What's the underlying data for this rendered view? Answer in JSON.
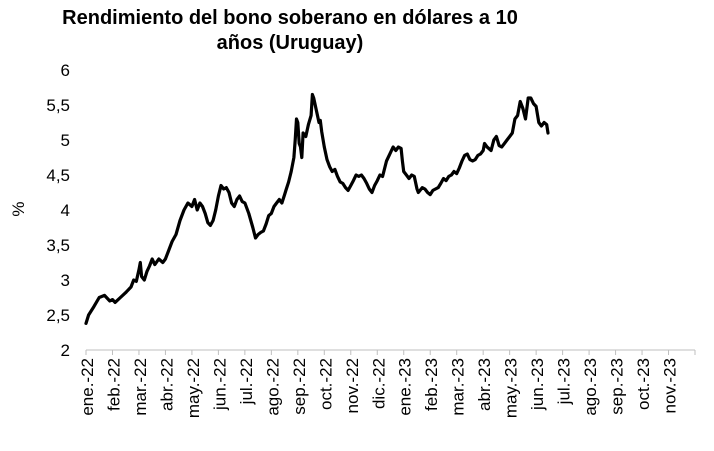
{
  "chart_data": {
    "type": "line",
    "title_lines": [
      "Rendimiento del bono soberano en dólares a 10",
      "años (Uruguay)"
    ],
    "xlabel": "",
    "ylabel": "%",
    "ylim": [
      2,
      6
    ],
    "yticks": [
      "2",
      "2,5",
      "3",
      "3,5",
      "4",
      "4,5",
      "5",
      "5,5",
      "6"
    ],
    "categories": [
      "ene.-22",
      "feb.-22",
      "mar.-22",
      "abr.-22",
      "may.-22",
      "jun.-22",
      "jul.-22",
      "ago.-22",
      "sep.-22",
      "oct.-22",
      "nov.-22",
      "dic.-22",
      "ene.-23",
      "feb.-23",
      "mar.-23",
      "abr.-23",
      "may.-23",
      "jun.-23",
      "jul.-23",
      "ago.-23",
      "sep.-23",
      "oct.-23",
      "nov.-23"
    ],
    "grid": false,
    "legend": "none",
    "line_color": "#000000",
    "series": [
      {
        "points": [
          [
            0,
            2.38
          ],
          [
            0.1,
            2.5
          ],
          [
            0.3,
            2.62
          ],
          [
            0.5,
            2.75
          ],
          [
            0.7,
            2.78
          ],
          [
            0.9,
            2.7
          ],
          [
            1.0,
            2.72
          ],
          [
            1.1,
            2.68
          ],
          [
            1.3,
            2.75
          ],
          [
            1.5,
            2.82
          ],
          [
            1.7,
            2.9
          ],
          [
            1.8,
            3.0
          ],
          [
            1.9,
            2.98
          ],
          [
            2.0,
            3.15
          ],
          [
            2.05,
            3.25
          ],
          [
            2.1,
            3.05
          ],
          [
            2.2,
            3.0
          ],
          [
            2.3,
            3.12
          ],
          [
            2.4,
            3.2
          ],
          [
            2.5,
            3.3
          ],
          [
            2.6,
            3.22
          ],
          [
            2.75,
            3.3
          ],
          [
            2.9,
            3.25
          ],
          [
            3.0,
            3.3
          ],
          [
            3.1,
            3.4
          ],
          [
            3.25,
            3.55
          ],
          [
            3.4,
            3.65
          ],
          [
            3.55,
            3.85
          ],
          [
            3.7,
            4.0
          ],
          [
            3.85,
            4.1
          ],
          [
            4.0,
            4.05
          ],
          [
            4.1,
            4.15
          ],
          [
            4.2,
            4.0
          ],
          [
            4.3,
            4.1
          ],
          [
            4.4,
            4.05
          ],
          [
            4.5,
            3.95
          ],
          [
            4.6,
            3.82
          ],
          [
            4.7,
            3.78
          ],
          [
            4.8,
            3.85
          ],
          [
            4.9,
            4.0
          ],
          [
            5.0,
            4.2
          ],
          [
            5.1,
            4.35
          ],
          [
            5.2,
            4.3
          ],
          [
            5.3,
            4.32
          ],
          [
            5.4,
            4.25
          ],
          [
            5.5,
            4.1
          ],
          [
            5.6,
            4.05
          ],
          [
            5.7,
            4.15
          ],
          [
            5.8,
            4.2
          ],
          [
            5.9,
            4.12
          ],
          [
            6.0,
            4.1
          ],
          [
            6.15,
            3.95
          ],
          [
            6.3,
            3.75
          ],
          [
            6.4,
            3.6
          ],
          [
            6.5,
            3.65
          ],
          [
            6.6,
            3.68
          ],
          [
            6.7,
            3.7
          ],
          [
            6.8,
            3.8
          ],
          [
            6.9,
            3.92
          ],
          [
            7.0,
            3.95
          ],
          [
            7.1,
            4.05
          ],
          [
            7.2,
            4.1
          ],
          [
            7.3,
            4.15
          ],
          [
            7.4,
            4.1
          ],
          [
            7.5,
            4.22
          ],
          [
            7.55,
            4.28
          ],
          [
            7.65,
            4.4
          ],
          [
            7.75,
            4.55
          ],
          [
            7.85,
            4.75
          ],
          [
            7.9,
            5.0
          ],
          [
            7.95,
            5.3
          ],
          [
            8.0,
            5.25
          ],
          [
            8.05,
            4.95
          ],
          [
            8.1,
            4.9
          ],
          [
            8.15,
            4.75
          ],
          [
            8.2,
            5.1
          ],
          [
            8.3,
            5.05
          ],
          [
            8.4,
            5.22
          ],
          [
            8.5,
            5.35
          ],
          [
            8.55,
            5.65
          ],
          [
            8.6,
            5.6
          ],
          [
            8.7,
            5.42
          ],
          [
            8.8,
            5.25
          ],
          [
            8.85,
            5.28
          ],
          [
            8.9,
            5.12
          ],
          [
            9.0,
            4.9
          ],
          [
            9.1,
            4.72
          ],
          [
            9.2,
            4.62
          ],
          [
            9.3,
            4.55
          ],
          [
            9.4,
            4.58
          ],
          [
            9.5,
            4.48
          ],
          [
            9.6,
            4.4
          ],
          [
            9.7,
            4.38
          ],
          [
            9.8,
            4.32
          ],
          [
            9.9,
            4.28
          ],
          [
            10.0,
            4.35
          ],
          [
            10.1,
            4.42
          ],
          [
            10.2,
            4.5
          ],
          [
            10.3,
            4.48
          ],
          [
            10.4,
            4.5
          ],
          [
            10.5,
            4.45
          ],
          [
            10.6,
            4.38
          ],
          [
            10.7,
            4.3
          ],
          [
            10.8,
            4.25
          ],
          [
            10.9,
            4.35
          ],
          [
            11.0,
            4.42
          ],
          [
            11.1,
            4.5
          ],
          [
            11.2,
            4.48
          ],
          [
            11.35,
            4.7
          ],
          [
            11.5,
            4.82
          ],
          [
            11.6,
            4.9
          ],
          [
            11.7,
            4.85
          ],
          [
            11.8,
            4.9
          ],
          [
            11.9,
            4.88
          ],
          [
            11.95,
            4.7
          ],
          [
            12.0,
            4.55
          ],
          [
            12.1,
            4.5
          ],
          [
            12.2,
            4.45
          ],
          [
            12.3,
            4.5
          ],
          [
            12.4,
            4.48
          ],
          [
            12.5,
            4.3
          ],
          [
            12.55,
            4.25
          ],
          [
            12.7,
            4.32
          ],
          [
            12.8,
            4.3
          ],
          [
            12.9,
            4.25
          ],
          [
            13.0,
            4.22
          ],
          [
            13.1,
            4.28
          ],
          [
            13.2,
            4.3
          ],
          [
            13.3,
            4.32
          ],
          [
            13.4,
            4.38
          ],
          [
            13.5,
            4.45
          ],
          [
            13.6,
            4.42
          ],
          [
            13.7,
            4.48
          ],
          [
            13.8,
            4.5
          ],
          [
            13.9,
            4.55
          ],
          [
            14.0,
            4.52
          ],
          [
            14.1,
            4.6
          ],
          [
            14.2,
            4.7
          ],
          [
            14.3,
            4.78
          ],
          [
            14.4,
            4.8
          ],
          [
            14.5,
            4.72
          ],
          [
            14.6,
            4.7
          ],
          [
            14.7,
            4.72
          ],
          [
            14.8,
            4.78
          ],
          [
            14.9,
            4.8
          ],
          [
            15.0,
            4.85
          ],
          [
            15.05,
            4.95
          ],
          [
            15.15,
            4.9
          ],
          [
            15.3,
            4.85
          ],
          [
            15.4,
            5.0
          ],
          [
            15.5,
            5.05
          ],
          [
            15.6,
            4.92
          ],
          [
            15.7,
            4.9
          ],
          [
            15.8,
            4.95
          ],
          [
            15.9,
            5.0
          ],
          [
            16.0,
            5.05
          ],
          [
            16.1,
            5.1
          ],
          [
            16.2,
            5.3
          ],
          [
            16.3,
            5.35
          ],
          [
            16.4,
            5.55
          ],
          [
            16.5,
            5.45
          ],
          [
            16.6,
            5.3
          ],
          [
            16.7,
            5.6
          ],
          [
            16.8,
            5.6
          ],
          [
            16.9,
            5.52
          ],
          [
            17.0,
            5.48
          ],
          [
            17.1,
            5.25
          ],
          [
            17.2,
            5.2
          ],
          [
            17.3,
            5.25
          ],
          [
            17.4,
            5.22
          ],
          [
            17.45,
            5.1
          ]
        ]
      }
    ]
  }
}
